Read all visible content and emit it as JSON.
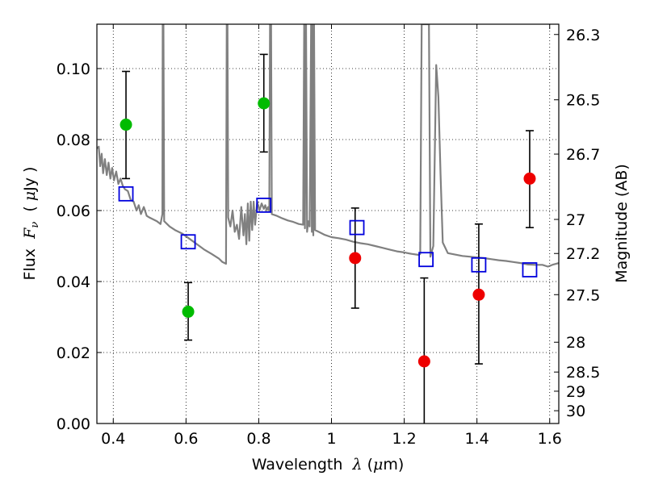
{
  "chart_data": {
    "type": "scatter",
    "xlabel": "Wavelength λ (μm)",
    "ylabel": "Flux F_ν (μJy)",
    "xlabel_parts": {
      "pre": "Wavelength  ",
      "sym": "λ",
      "post": " (",
      "mu": "μ",
      "unit": "m)"
    },
    "ylabel_parts": {
      "pre": "Flux  ",
      "sym": "F",
      "sub": "ν",
      "post": "  ( ",
      "mu": "μ",
      "unit": "Jy )"
    },
    "y2label": "Magnitude (AB)",
    "xlim": [
      0.355,
      1.625
    ],
    "ylim": [
      0.0,
      0.1125
    ],
    "grid": true,
    "x_ticks": [
      0.4,
      0.6,
      0.8,
      1.0,
      1.2,
      1.4,
      1.6
    ],
    "x_tick_labels": [
      "0.4",
      "0.6",
      "0.8",
      "1",
      "1.2",
      "1.4",
      "1.6"
    ],
    "y_ticks": [
      0.0,
      0.02,
      0.04,
      0.06,
      0.08,
      0.1
    ],
    "y_tick_labels": [
      "0.00",
      "0.02",
      "0.04",
      "0.06",
      "0.08",
      "0.10"
    ],
    "y2_ticks": [
      {
        "label": "26.3",
        "flux": 0.1096
      },
      {
        "label": "26.5",
        "flux": 0.0912
      },
      {
        "label": "26.7",
        "flux": 0.0759
      },
      {
        "label": "27",
        "flux": 0.0575
      },
      {
        "label": "27.2",
        "flux": 0.0479
      },
      {
        "label": "27.5",
        "flux": 0.0363
      },
      {
        "label": "28",
        "flux": 0.0229
      },
      {
        "label": "28.5",
        "flux": 0.0145
      },
      {
        "label": "29",
        "flux": 0.0091
      },
      {
        "label": "30",
        "flux": 0.0036
      }
    ],
    "series": [
      {
        "name": "observed (green)",
        "color": "#00bb00",
        "marker": "circle",
        "points": [
          {
            "x": 0.435,
            "y": 0.0842,
            "err_lo": 0.069,
            "err_hi": 0.0992
          },
          {
            "x": 0.606,
            "y": 0.0315,
            "err_lo": 0.0235,
            "err_hi": 0.0397
          },
          {
            "x": 0.814,
            "y": 0.0902,
            "err_lo": 0.0765,
            "err_hi": 0.104
          }
        ]
      },
      {
        "name": "observed (red)",
        "color": "#ee0000",
        "marker": "circle",
        "points": [
          {
            "x": 1.065,
            "y": 0.0466,
            "err_lo": 0.0325,
            "err_hi": 0.0607
          },
          {
            "x": 1.255,
            "y": 0.0175,
            "err_lo": 0.0,
            "err_hi": 0.041
          },
          {
            "x": 1.405,
            "y": 0.0363,
            "err_lo": 0.0168,
            "err_hi": 0.0562
          },
          {
            "x": 1.545,
            "y": 0.069,
            "err_lo": 0.0552,
            "err_hi": 0.0825
          }
        ]
      },
      {
        "name": "model photometry",
        "color": "#0000dd",
        "marker": "open-square",
        "points": [
          {
            "x": 0.435,
            "y": 0.0647
          },
          {
            "x": 0.606,
            "y": 0.0512
          },
          {
            "x": 0.814,
            "y": 0.0615
          },
          {
            "x": 1.07,
            "y": 0.0552
          },
          {
            "x": 1.26,
            "y": 0.0462
          },
          {
            "x": 1.405,
            "y": 0.0447
          },
          {
            "x": 1.545,
            "y": 0.0433
          }
        ]
      },
      {
        "name": "model spectrum",
        "color": "#808080",
        "marker": "line",
        "points": [
          [
            0.355,
            0.0775
          ],
          [
            0.36,
            0.078
          ],
          [
            0.364,
            0.0725
          ],
          [
            0.368,
            0.076
          ],
          [
            0.372,
            0.0705
          ],
          [
            0.377,
            0.0745
          ],
          [
            0.382,
            0.07
          ],
          [
            0.387,
            0.0735
          ],
          [
            0.392,
            0.069
          ],
          [
            0.397,
            0.072
          ],
          [
            0.402,
            0.0685
          ],
          [
            0.408,
            0.071
          ],
          [
            0.414,
            0.0675
          ],
          [
            0.42,
            0.069
          ],
          [
            0.426,
            0.067
          ],
          [
            0.432,
            0.066
          ],
          [
            0.44,
            0.0655
          ],
          [
            0.448,
            0.063
          ],
          [
            0.456,
            0.0625
          ],
          [
            0.464,
            0.06
          ],
          [
            0.47,
            0.0615
          ],
          [
            0.476,
            0.059
          ],
          [
            0.484,
            0.061
          ],
          [
            0.492,
            0.0585
          ],
          [
            0.5,
            0.058
          ],
          [
            0.51,
            0.0575
          ],
          [
            0.52,
            0.057
          ],
          [
            0.53,
            0.0562
          ],
          [
            0.535,
            0.059
          ],
          [
            0.536,
            0.1125
          ],
          [
            0.538,
            0.1125
          ],
          [
            0.54,
            0.057
          ],
          [
            0.555,
            0.0555
          ],
          [
            0.57,
            0.0545
          ],
          [
            0.59,
            0.0535
          ],
          [
            0.61,
            0.052
          ],
          [
            0.63,
            0.0505
          ],
          [
            0.65,
            0.049
          ],
          [
            0.67,
            0.0478
          ],
          [
            0.69,
            0.0465
          ],
          [
            0.7,
            0.0455
          ],
          [
            0.71,
            0.045
          ],
          [
            0.712,
            0.1125
          ],
          [
            0.714,
            0.1125
          ],
          [
            0.716,
            0.058
          ],
          [
            0.722,
            0.0555
          ],
          [
            0.728,
            0.06
          ],
          [
            0.734,
            0.054
          ],
          [
            0.74,
            0.056
          ],
          [
            0.746,
            0.052
          ],
          [
            0.752,
            0.061
          ],
          [
            0.758,
            0.053
          ],
          [
            0.762,
            0.059
          ],
          [
            0.766,
            0.0505
          ],
          [
            0.77,
            0.062
          ],
          [
            0.774,
            0.0515
          ],
          [
            0.778,
            0.0625
          ],
          [
            0.782,
            0.0545
          ],
          [
            0.786,
            0.0625
          ],
          [
            0.79,
            0.056
          ],
          [
            0.796,
            0.0625
          ],
          [
            0.802,
            0.06
          ],
          [
            0.808,
            0.062
          ],
          [
            0.814,
            0.0605
          ],
          [
            0.818,
            0.0615
          ],
          [
            0.822,
            0.06
          ],
          [
            0.826,
            0.061
          ],
          [
            0.829,
            0.06
          ],
          [
            0.831,
            0.1125
          ],
          [
            0.834,
            0.1125
          ],
          [
            0.836,
            0.059
          ],
          [
            0.85,
            0.0585
          ],
          [
            0.865,
            0.0578
          ],
          [
            0.88,
            0.0572
          ],
          [
            0.895,
            0.0568
          ],
          [
            0.91,
            0.0562
          ],
          [
            0.922,
            0.056
          ],
          [
            0.925,
            0.1125
          ],
          [
            0.927,
            0.055
          ],
          [
            0.93,
            0.1125
          ],
          [
            0.933,
            0.054
          ],
          [
            0.936,
            0.057
          ],
          [
            0.94,
            0.0555
          ],
          [
            0.944,
            0.1125
          ],
          [
            0.946,
            0.054
          ],
          [
            0.948,
            0.1125
          ],
          [
            0.95,
            0.053
          ],
          [
            0.952,
            0.1125
          ],
          [
            0.955,
            0.0545
          ],
          [
            0.965,
            0.054
          ],
          [
            0.98,
            0.0532
          ],
          [
            1.0,
            0.0525
          ],
          [
            1.02,
            0.0522
          ],
          [
            1.04,
            0.0518
          ],
          [
            1.06,
            0.0512
          ],
          [
            1.08,
            0.0508
          ],
          [
            1.1,
            0.0505
          ],
          [
            1.12,
            0.05
          ],
          [
            1.14,
            0.0495
          ],
          [
            1.16,
            0.049
          ],
          [
            1.18,
            0.0485
          ],
          [
            1.2,
            0.0482
          ],
          [
            1.22,
            0.0478
          ],
          [
            1.24,
            0.0475
          ],
          [
            1.244,
            0.0478
          ],
          [
            1.248,
            0.1125
          ],
          [
            1.268,
            0.1125
          ],
          [
            1.272,
            0.047
          ],
          [
            1.28,
            0.05
          ],
          [
            1.288,
            0.101
          ],
          [
            1.294,
            0.092
          ],
          [
            1.3,
            0.07
          ],
          [
            1.306,
            0.051
          ],
          [
            1.32,
            0.048
          ],
          [
            1.34,
            0.0476
          ],
          [
            1.36,
            0.0472
          ],
          [
            1.38,
            0.047
          ],
          [
            1.4,
            0.0468
          ],
          [
            1.42,
            0.0466
          ],
          [
            1.44,
            0.0463
          ],
          [
            1.46,
            0.046
          ],
          [
            1.48,
            0.0458
          ],
          [
            1.5,
            0.0455
          ],
          [
            1.52,
            0.0452
          ],
          [
            1.54,
            0.0448
          ],
          [
            1.56,
            0.0447
          ],
          [
            1.58,
            0.0447
          ],
          [
            1.595,
            0.0442
          ],
          [
            1.61,
            0.0448
          ],
          [
            1.625,
            0.0452
          ]
        ]
      }
    ]
  }
}
